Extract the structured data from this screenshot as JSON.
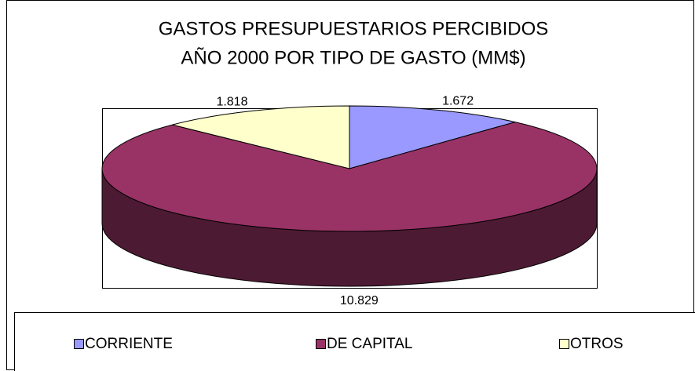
{
  "chart_data": {
    "type": "pie3d",
    "title": [
      "GASTOS PRESUPUESTARIOS PERCIBIDOS",
      "AÑO 2000 POR TIPO DE GASTO (MM$)"
    ],
    "categories": [
      "CORRIENTE",
      "DE CAPITAL",
      "OTROS"
    ],
    "values": [
      1672,
      10829,
      1818
    ],
    "value_labels": [
      "1.672",
      "10.829",
      "1.818"
    ],
    "colors": [
      "#9999ff",
      "#993366",
      "#ffffcc"
    ],
    "legend": "bottom"
  }
}
